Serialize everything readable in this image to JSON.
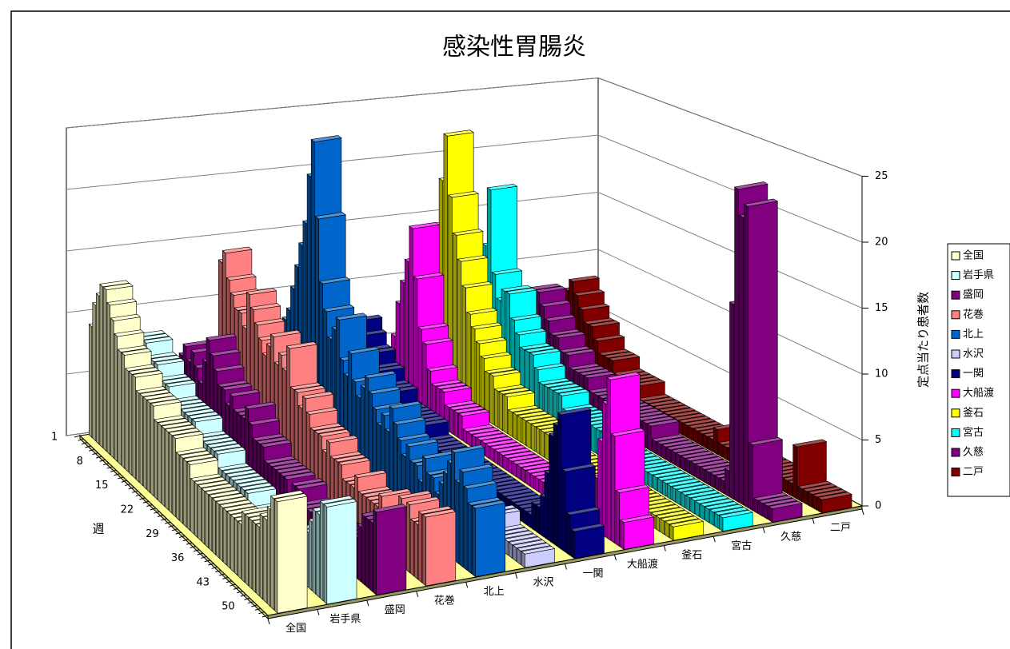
{
  "chart_data": {
    "type": "bar3d",
    "title": "感染性胃腸炎",
    "x_label": "週",
    "y_label": "定点当たり患者数",
    "categories": [
      1,
      null,
      null,
      null,
      null,
      null,
      null,
      8,
      null,
      null,
      null,
      null,
      null,
      null,
      15,
      null,
      null,
      null,
      null,
      null,
      null,
      22,
      null,
      null,
      null,
      null,
      null,
      null,
      29,
      null,
      null,
      null,
      null,
      null,
      null,
      36,
      null,
      null,
      null,
      null,
      null,
      null,
      43,
      null,
      null,
      null,
      null,
      null,
      null,
      50,
      null,
      null
    ],
    "ylim": [
      0,
      25
    ],
    "yticks": [
      0,
      5,
      10,
      15,
      20,
      25
    ],
    "grid": true,
    "legend": "right",
    "series": [
      {
        "name": "全国",
        "color": "#ffffcc",
        "values": [
          9,
          11,
          12,
          13,
          13,
          12,
          11,
          10,
          9,
          9,
          8,
          8,
          8,
          7,
          7,
          7,
          7,
          7,
          6,
          6,
          6,
          6,
          6,
          6,
          5,
          5,
          5,
          5,
          4,
          4,
          4,
          4,
          4,
          4,
          4,
          4,
          4,
          4,
          4,
          4,
          4,
          4,
          5,
          5,
          5,
          5,
          5,
          6,
          6,
          7,
          8,
          8
        ]
      },
      {
        "name": "岩手県",
        "color": "#ccffff",
        "values": [
          7,
          8,
          8,
          8,
          7,
          7,
          7,
          6,
          6,
          6,
          5,
          5,
          5,
          5,
          5,
          5,
          5,
          4,
          4,
          4,
          4,
          4,
          4,
          3,
          3,
          3,
          3,
          3,
          3,
          3,
          3,
          2,
          2,
          2,
          2,
          2,
          2,
          2,
          2,
          2,
          2,
          2,
          3,
          3,
          3,
          4,
          4,
          5,
          6,
          6,
          7,
          7
        ]
      },
      {
        "name": "盛岡",
        "color": "#800080",
        "values": [
          5,
          6,
          7,
          6,
          7,
          6,
          5,
          7,
          9,
          8,
          7,
          6,
          6,
          5,
          6,
          5,
          5,
          5,
          6,
          5,
          4,
          4,
          4,
          3,
          3,
          3,
          3,
          3,
          3,
          2,
          3,
          3,
          2,
          2,
          2,
          2,
          2,
          2,
          2,
          2,
          2,
          2,
          2,
          2,
          3,
          3,
          3,
          4,
          5,
          5,
          5,
          6
        ]
      },
      {
        "name": "花巻",
        "color": "#ff8080",
        "values": [
          13,
          14,
          12,
          11,
          10,
          10,
          9,
          12,
          11,
          10,
          9,
          8,
          9,
          10,
          8,
          9,
          8,
          10,
          7,
          7,
          6,
          7,
          6,
          5,
          5,
          5,
          4,
          5,
          4,
          4,
          4,
          3,
          3,
          3,
          4,
          3,
          3,
          3,
          3,
          3,
          4,
          3,
          3,
          3,
          4,
          5,
          4,
          5,
          4,
          4,
          5,
          5
        ]
      },
      {
        "name": "北上",
        "color": "#0066cc",
        "values": [
          6,
          7,
          7,
          8,
          8,
          9,
          10,
          12,
          14,
          16,
          18,
          22,
          25,
          19,
          14,
          12,
          10,
          11,
          12,
          9,
          8,
          10,
          8,
          7,
          8,
          9,
          8,
          7,
          6,
          7,
          6,
          8,
          7,
          6,
          5,
          6,
          5,
          5,
          4,
          6,
          5,
          5,
          4,
          5,
          6,
          7,
          8,
          6,
          7,
          6,
          5,
          5
        ]
      },
      {
        "name": "水沢",
        "color": "#ccccff",
        "values": [
          3,
          3,
          4,
          3,
          4,
          4,
          5,
          4,
          5,
          6,
          5,
          4,
          5,
          4,
          4,
          3,
          3,
          4,
          3,
          3,
          3,
          3,
          2,
          2,
          2,
          2,
          2,
          2,
          2,
          2,
          2,
          2,
          2,
          2,
          2,
          2,
          1,
          1,
          1,
          1,
          1,
          1,
          2,
          2,
          1,
          1,
          1,
          1,
          1,
          1,
          1,
          1
        ]
      },
      {
        "name": "一関",
        "color": "#000080",
        "values": [
          6,
          7,
          6,
          5,
          5,
          4,
          4,
          3,
          3,
          3,
          2,
          2,
          2,
          2,
          2,
          2,
          2,
          1,
          1,
          1,
          1,
          1,
          1,
          1,
          1,
          1,
          1,
          1,
          1,
          1,
          1,
          1,
          1,
          1,
          1,
          1,
          1,
          1,
          1,
          1,
          1,
          1,
          2,
          2,
          3,
          5,
          8,
          9,
          10,
          6,
          3,
          2
        ]
      },
      {
        "name": "大船渡",
        "color": "#ff00ff",
        "values": [
          5,
          8,
          10,
          12,
          15,
          11,
          7,
          6,
          4,
          3,
          3,
          3,
          2,
          2,
          2,
          2,
          1,
          1,
          1,
          1,
          1,
          1,
          1,
          1,
          1,
          1,
          1,
          1,
          1,
          1,
          1,
          1,
          1,
          1,
          1,
          1,
          1,
          1,
          1,
          1,
          1,
          1,
          1,
          2,
          3,
          4,
          7,
          10,
          12,
          8,
          4,
          2
        ]
      },
      {
        "name": "釜石",
        "color": "#ffff00",
        "values": [
          14,
          18,
          22,
          17,
          14,
          12,
          10,
          8,
          7,
          6,
          5,
          4,
          4,
          3,
          3,
          3,
          2,
          2,
          2,
          2,
          2,
          2,
          2,
          2,
          2,
          1,
          1,
          1,
          1,
          1,
          1,
          1,
          1,
          1,
          1,
          1,
          1,
          1,
          1,
          1,
          1,
          1,
          1,
          1,
          1,
          1,
          1,
          1,
          1,
          1,
          1,
          1
        ]
      },
      {
        "name": "宮古",
        "color": "#00ffff",
        "values": [
          8,
          12,
          17,
          10,
          8,
          9,
          9,
          7,
          6,
          5,
          5,
          5,
          4,
          3,
          3,
          3,
          3,
          3,
          2,
          2,
          2,
          2,
          2,
          2,
          2,
          2,
          2,
          2,
          2,
          1,
          1,
          1,
          1,
          1,
          1,
          1,
          1,
          1,
          1,
          1,
          1,
          1,
          1,
          1,
          1,
          1,
          1,
          1,
          1,
          1,
          1,
          1
        ]
      },
      {
        "name": "久慈",
        "color": "#800080",
        "values": [
          6,
          7,
          8,
          8,
          7,
          6,
          5,
          5,
          4,
          4,
          3,
          3,
          3,
          3,
          2,
          2,
          2,
          2,
          2,
          2,
          2,
          2,
          2,
          2,
          2,
          2,
          2,
          1,
          1,
          1,
          1,
          1,
          1,
          1,
          1,
          1,
          1,
          1,
          1,
          1,
          1,
          1,
          2,
          15,
          24,
          22,
          23,
          5,
          1,
          1,
          1,
          1
        ]
      },
      {
        "name": "二戸",
        "color": "#800000",
        "values": [
          7,
          8,
          7,
          6,
          5,
          5,
          4,
          3,
          3,
          3,
          2,
          2,
          2,
          2,
          2,
          1,
          1,
          1,
          1,
          1,
          1,
          1,
          1,
          1,
          1,
          1,
          1,
          1,
          1,
          1,
          2,
          1,
          1,
          1,
          1,
          1,
          1,
          1,
          1,
          1,
          1,
          1,
          1,
          1,
          1,
          1,
          4,
          1,
          1,
          1,
          1,
          1
        ]
      }
    ]
  }
}
